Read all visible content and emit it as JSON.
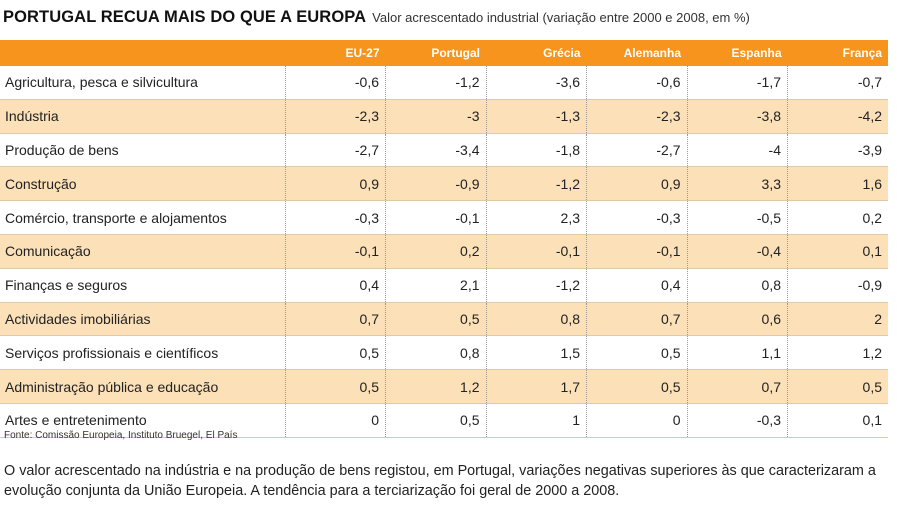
{
  "header": {
    "title": "PORTUGAL RECUA MAIS DO QUE A EUROPA",
    "subtitle": "Valor acrescentado industrial (variação entre 2000 e 2008, em %)"
  },
  "chart_data": {
    "type": "table",
    "title": "PORTUGAL RECUA MAIS DO QUE A EUROPA",
    "subtitle": "Valor acrescentado industrial (variação entre 2000 e 2008, em %)",
    "columns": [
      "EU-27",
      "Portugal",
      "Grécia",
      "Alemanha",
      "Espanha",
      "França"
    ],
    "rows": [
      {
        "label": "Agricultura, pesca e silvicultura",
        "values": [
          "-0,6",
          "-1,2",
          "-3,6",
          "-0,6",
          "-1,7",
          "-0,7"
        ]
      },
      {
        "label": "Indústria",
        "values": [
          "-2,3",
          "-3",
          "-1,3",
          "-2,3",
          "-3,8",
          "-4,2"
        ]
      },
      {
        "label": "Produção de bens",
        "values": [
          "-2,7",
          "-3,4",
          "-1,8",
          "-2,7",
          "-4",
          "-3,9"
        ]
      },
      {
        "label": "Construção",
        "values": [
          "0,9",
          "-0,9",
          "-1,2",
          "0,9",
          "3,3",
          "1,6"
        ]
      },
      {
        "label": "Comércio, transporte e alojamentos",
        "values": [
          "-0,3",
          "-0,1",
          "2,3",
          "-0,3",
          "-0,5",
          "0,2"
        ]
      },
      {
        "label": "Comunicação",
        "values": [
          "-0,1",
          "0,2",
          "-0,1",
          "-0,1",
          "-0,4",
          "0,1"
        ]
      },
      {
        "label": "Finanças e seguros",
        "values": [
          "0,4",
          "2,1",
          "-1,2",
          "0,4",
          "0,8",
          "-0,9"
        ]
      },
      {
        "label": "Actividades imobiliárias",
        "values": [
          "0,7",
          "0,5",
          "0,8",
          "0,7",
          "0,6",
          "2"
        ]
      },
      {
        "label": "Serviços profissionais e científicos",
        "values": [
          "0,5",
          "0,8",
          "1,5",
          "0,5",
          "1,1",
          "1,2"
        ]
      },
      {
        "label": "Administração pública e educação",
        "values": [
          "0,5",
          "1,2",
          "1,7",
          "0,5",
          "0,7",
          "0,5"
        ]
      },
      {
        "label": "Artes e entretenimento",
        "values": [
          "0",
          "0,5",
          "1",
          "0",
          "-0,3",
          "0,1"
        ]
      }
    ]
  },
  "footer": {
    "source": "Fonte: Comissão Europeia, Instituto Bruegel, El País",
    "caption": "O valor acrescentado na indústria e na produção de bens registou, em Portugal, variações negativas superiores às que caracterizaram a evolução conjunta da União Europeia. A tendência para a terciarização foi geral de 2000 a 2008."
  },
  "colors": {
    "header_bg": "#f7941d",
    "stripe_bg": "#fbe0b8"
  }
}
